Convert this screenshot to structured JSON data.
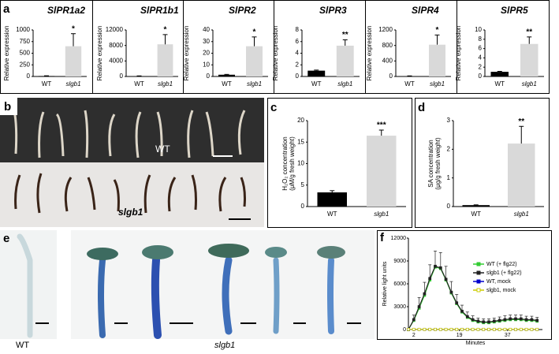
{
  "panel_labels": [
    "a",
    "b",
    "c",
    "d",
    "e",
    "f"
  ],
  "photos": {
    "b": {
      "labels": [
        "WT",
        "slgb1"
      ]
    },
    "e": {
      "labels": [
        "WT",
        "slgb1"
      ]
    }
  },
  "chart_data": [
    {
      "type": "bar",
      "title": "SlPR1a2",
      "ylabel": "Relative expression",
      "categories": [
        "WT",
        "slgb1"
      ],
      "values": [
        10,
        650
      ],
      "errors": [
        5,
        270
      ],
      "colors": [
        "#000000",
        "#d9d9d9"
      ],
      "significance": "*",
      "ylim": [
        0,
        1000
      ],
      "yticks": [
        0,
        250,
        500,
        750,
        1000
      ]
    },
    {
      "type": "bar",
      "title": "SlPR1b1",
      "ylabel": "Relative expression",
      "categories": [
        "WT",
        "slgb1"
      ],
      "values": [
        100,
        8300
      ],
      "errors": [
        50,
        2500
      ],
      "colors": [
        "#000000",
        "#d9d9d9"
      ],
      "significance": "*",
      "ylim": [
        0,
        12000
      ],
      "yticks": [
        0,
        4000,
        8000,
        12000
      ]
    },
    {
      "type": "bar",
      "title": "SlPR2",
      "ylabel": "Relative expression",
      "categories": [
        "WT",
        "slgb1"
      ],
      "values": [
        1.5,
        26
      ],
      "errors": [
        0.3,
        8
      ],
      "colors": [
        "#000000",
        "#d9d9d9"
      ],
      "significance": "*",
      "ylim": [
        0,
        40
      ],
      "yticks": [
        0,
        10,
        20,
        30,
        40
      ]
    },
    {
      "type": "bar",
      "title": "SlPR3",
      "ylabel": "Relative expression",
      "categories": [
        "WT",
        "slgb1"
      ],
      "values": [
        1,
        5.3
      ],
      "errors": [
        0.1,
        1
      ],
      "colors": [
        "#000000",
        "#d9d9d9"
      ],
      "significance": "**",
      "ylim": [
        0,
        8
      ],
      "yticks": [
        0,
        2,
        4,
        6,
        8
      ]
    },
    {
      "type": "bar",
      "title": "SlPR4",
      "ylabel": "Relative expression",
      "categories": [
        "WT",
        "slgb1"
      ],
      "values": [
        10,
        820
      ],
      "errors": [
        5,
        250
      ],
      "colors": [
        "#000000",
        "#d9d9d9"
      ],
      "significance": "*",
      "ylim": [
        0,
        1200
      ],
      "yticks": [
        0,
        400,
        800,
        1200
      ]
    },
    {
      "type": "bar",
      "title": "SlPR5",
      "ylabel": "Relative expression",
      "categories": [
        "WT",
        "slgb1"
      ],
      "values": [
        1,
        7
      ],
      "errors": [
        0.1,
        1.5
      ],
      "colors": [
        "#000000",
        "#d9d9d9"
      ],
      "significance": "**",
      "ylim": [
        0,
        10
      ],
      "yticks": [
        0,
        2,
        4,
        6,
        8,
        10
      ]
    },
    {
      "type": "bar",
      "ylabel": [
        "H₂O₂ concentration",
        "(μM/g fresh weight)"
      ],
      "categories": [
        "WT",
        "slgb1"
      ],
      "values": [
        3.3,
        16.5
      ],
      "errors": [
        0.4,
        1.3
      ],
      "colors": [
        "#000000",
        "#d9d9d9"
      ],
      "significance": "***",
      "ylim": [
        0,
        20
      ],
      "yticks": [
        0,
        5,
        10,
        15,
        20
      ]
    },
    {
      "type": "bar",
      "ylabel": [
        "SA concentration",
        "(μg/g fresh weight)"
      ],
      "categories": [
        "WT",
        "slgb1"
      ],
      "values": [
        0.05,
        2.2
      ],
      "errors": [
        0.01,
        0.6
      ],
      "colors": [
        "#000000",
        "#d9d9d9"
      ],
      "significance": "**",
      "ylim": [
        0,
        3
      ],
      "yticks": [
        0,
        1,
        2,
        3
      ]
    },
    {
      "type": "line",
      "xlabel": "Minutes",
      "ylabel": "Relative light units",
      "x": [
        0,
        2,
        4,
        6,
        8,
        10,
        12,
        14,
        16,
        18,
        20,
        22,
        24,
        26,
        28,
        30,
        32,
        34,
        36,
        38,
        40,
        42,
        44,
        46,
        48
      ],
      "xlim": [
        0,
        50
      ],
      "xticks": [
        2,
        19,
        37
      ],
      "ylim": [
        0,
        12000
      ],
      "yticks": [
        0,
        3000,
        6000,
        9000,
        12000
      ],
      "series": [
        {
          "name": "WT (+ flg22)",
          "color": "#33cc33",
          "values": [
            0,
            1200,
            2800,
            4500,
            6500,
            8200,
            8000,
            6500,
            4800,
            3400,
            2300,
            1600,
            1200,
            1000,
            900,
            900,
            1000,
            1100,
            1200,
            1300,
            1300,
            1300,
            1200,
            1200,
            1100
          ]
        },
        {
          "name": "slgb1 (+ flg22)",
          "color": "#222222",
          "values": [
            0,
            1300,
            3000,
            4700,
            6700,
            8300,
            8100,
            6600,
            4900,
            3500,
            2400,
            1700,
            1300,
            1100,
            1000,
            1000,
            1100,
            1200,
            1300,
            1400,
            1400,
            1400,
            1300,
            1300,
            1200
          ],
          "errors": [
            0,
            600,
            1200,
            1500,
            1800,
            2000,
            2000,
            1700,
            1400,
            1100,
            800,
            600,
            500,
            400,
            400,
            400,
            400,
            450,
            500,
            500,
            500,
            500,
            450,
            450,
            400
          ]
        },
        {
          "name": "WT, mock",
          "color": "#0000cc",
          "values": [
            20,
            20,
            20,
            20,
            20,
            20,
            20,
            20,
            20,
            20,
            20,
            20,
            20,
            20,
            20,
            20,
            20,
            20,
            20,
            20,
            20,
            20,
            20,
            20,
            20
          ]
        },
        {
          "name": "slgb1, mock",
          "color": "#cccc00",
          "values": [
            20,
            20,
            20,
            20,
            20,
            20,
            20,
            20,
            20,
            20,
            20,
            20,
            20,
            20,
            20,
            20,
            20,
            20,
            20,
            20,
            20,
            20,
            20,
            20,
            20
          ]
        }
      ]
    }
  ]
}
